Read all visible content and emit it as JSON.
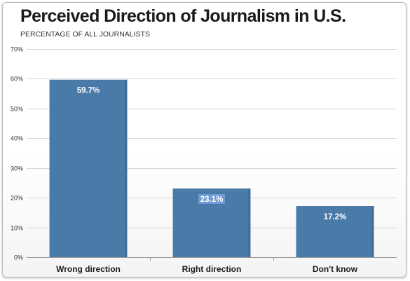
{
  "chart_data": {
    "type": "bar",
    "title": "Perceived Direction of Journalism in U.S.",
    "subtitle": "PERCENTAGE OF ALL JOURNALISTS",
    "categories": [
      "Wrong direction",
      "Right direction",
      "Don't know"
    ],
    "values": [
      59.7,
      23.1,
      17.2
    ],
    "data_labels": [
      "59.7%",
      "23.1%",
      "17.2%"
    ],
    "ylim": [
      0,
      70
    ],
    "yticks": [
      0,
      10,
      20,
      30,
      40,
      50,
      60,
      70
    ],
    "ytick_labels": [
      "0%",
      "10%",
      "20%",
      "30%",
      "40%",
      "50%",
      "60%",
      "70%"
    ],
    "grid": true,
    "bar_color": "#4a7aa8",
    "highlight_label_index": 1,
    "highlight_color": "#6f9bd6"
  }
}
